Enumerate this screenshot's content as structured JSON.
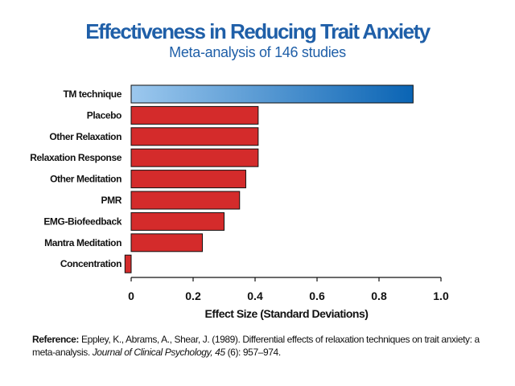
{
  "header": {
    "title": "Effectiveness in Reducing Trait Anxiety",
    "subtitle": "Meta-analysis of 146 studies"
  },
  "colors": {
    "title": "#1f5fa8",
    "highlight_bar_light": "#9cc8ee",
    "highlight_bar_dark": "#0a64b4",
    "other_bar": "#d42b2b",
    "bar_outline": "#111111"
  },
  "chart_data": {
    "type": "bar",
    "orientation": "horizontal",
    "title": "Effectiveness in Reducing Trait Anxiety",
    "subtitle": "Meta-analysis of 146 studies",
    "xlabel": "Effect Size (Standard Deviations)",
    "ylabel": "",
    "xlim": [
      0,
      1.0
    ],
    "x_ticks": [
      "0",
      "0.2",
      "0.4",
      "0.6",
      "0.8",
      "1.0"
    ],
    "grid": false,
    "legend": "none",
    "categories": [
      "TM technique",
      "Placebo",
      "Other Relaxation",
      "Relaxation Response",
      "Other Meditation",
      "PMR",
      "EMG-Biofeedback",
      "Mantra Meditation",
      "Concentration"
    ],
    "values": [
      0.91,
      0.41,
      0.41,
      0.41,
      0.37,
      0.35,
      0.3,
      0.23,
      -0.02
    ],
    "highlight_category": "TM technique"
  },
  "reference": {
    "label": "Reference:",
    "authors": " Eppley, K., Abrams, A., Shear, J. (1989). Differential effects of relaxation techniques on trait anxiety: a meta-analysis. ",
    "journal": "Journal of Clinical Psychology, 45",
    "rest": " (6): 957–974."
  }
}
